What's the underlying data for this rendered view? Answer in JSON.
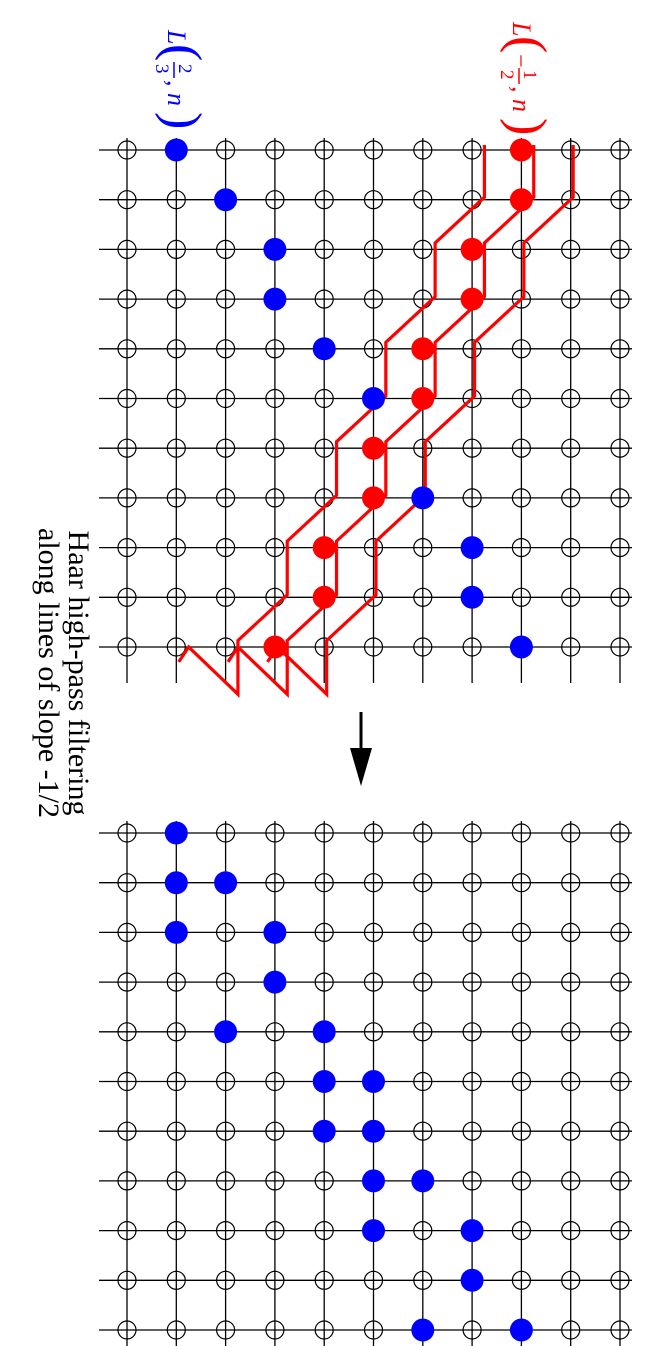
{
  "caption": {
    "line1": "Haar high-pass filtering",
    "line2": "along lines of slope -1/2"
  },
  "labels": {
    "red": {
      "letter": "L",
      "sign": "−",
      "num": "1",
      "den": "2",
      "var": ", n"
    },
    "blue": {
      "letter": "L",
      "sign": "",
      "num": "2",
      "den": "3",
      "var": ", n"
    }
  },
  "colors": {
    "red": "#ff0000",
    "blue": "#0000ff",
    "grid": "#000000"
  },
  "icons": {
    "arrow": "arrow-down-icon"
  },
  "lattice": {
    "rows": 11,
    "cols": 11
  },
  "top_lattice": {
    "red_points": [
      [
        8,
        0
      ],
      [
        8,
        1
      ],
      [
        7,
        2
      ],
      [
        7,
        3
      ],
      [
        6,
        4
      ],
      [
        6,
        5
      ],
      [
        5,
        6
      ],
      [
        5,
        7
      ],
      [
        4,
        8
      ],
      [
        4,
        9
      ],
      [
        3,
        10
      ]
    ],
    "blue_points": [
      [
        1,
        0
      ],
      [
        2,
        1
      ],
      [
        3,
        2
      ],
      [
        3,
        3
      ],
      [
        4,
        4
      ],
      [
        5,
        5
      ],
      [
        6,
        7
      ],
      [
        7,
        8
      ],
      [
        7,
        9
      ],
      [
        8,
        10
      ]
    ]
  },
  "bottom_lattice": {
    "blue_points": [
      [
        1,
        0
      ],
      [
        1,
        1
      ],
      [
        2,
        1
      ],
      [
        1,
        2
      ],
      [
        3,
        2
      ],
      [
        3,
        3
      ],
      [
        2,
        4
      ],
      [
        4,
        4
      ],
      [
        4,
        5
      ],
      [
        5,
        5
      ],
      [
        4,
        6
      ],
      [
        5,
        6
      ],
      [
        5,
        7
      ],
      [
        6,
        7
      ],
      [
        5,
        8
      ],
      [
        7,
        8
      ],
      [
        7,
        9
      ],
      [
        6,
        10
      ],
      [
        8,
        10
      ]
    ]
  }
}
